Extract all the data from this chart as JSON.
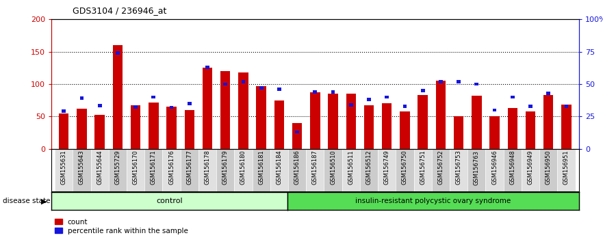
{
  "title": "GDS3104 / 236946_at",
  "samples": [
    "GSM155631",
    "GSM155643",
    "GSM155644",
    "GSM155729",
    "GSM156170",
    "GSM156171",
    "GSM156176",
    "GSM156177",
    "GSM156178",
    "GSM156179",
    "GSM156180",
    "GSM156181",
    "GSM156184",
    "GSM156186",
    "GSM156187",
    "GSM156510",
    "GSM156511",
    "GSM156512",
    "GSM156749",
    "GSM156750",
    "GSM156751",
    "GSM156752",
    "GSM156753",
    "GSM156763",
    "GSM156946",
    "GSM156948",
    "GSM156949",
    "GSM156950",
    "GSM156951"
  ],
  "counts": [
    55,
    62,
    53,
    160,
    67,
    72,
    65,
    60,
    125,
    120,
    118,
    97,
    75,
    40,
    87,
    85,
    85,
    67,
    70,
    58,
    83,
    105,
    50,
    82,
    50,
    63,
    58,
    83,
    68
  ],
  "percentile": [
    58,
    78,
    67,
    148,
    65,
    80,
    64,
    70,
    126,
    100,
    104,
    94,
    92,
    26,
    88,
    88,
    68,
    76,
    80,
    66,
    90,
    104,
    104,
    100,
    60,
    80,
    66,
    86,
    66
  ],
  "n_control": 13,
  "control_label": "control",
  "disease_label": "insulin-resistant polycystic ovary syndrome",
  "bar_color": "#cc0000",
  "pct_color": "#1515dd",
  "control_bg": "#ccffcc",
  "disease_bg": "#55dd55",
  "ylim_left": [
    0,
    200
  ],
  "ylim_right": [
    0,
    200
  ],
  "yticks_left": [
    0,
    50,
    100,
    150,
    200
  ],
  "ytick_labels_left": [
    "0",
    "50",
    "100",
    "150",
    "200"
  ],
  "yticks_right": [
    0,
    50,
    100,
    150,
    200
  ],
  "ytick_labels_right": [
    "0",
    "25",
    "50",
    "75",
    "100%"
  ],
  "legend_count": "count",
  "legend_pct": "percentile rank within the sample",
  "disease_state_label": "disease state"
}
